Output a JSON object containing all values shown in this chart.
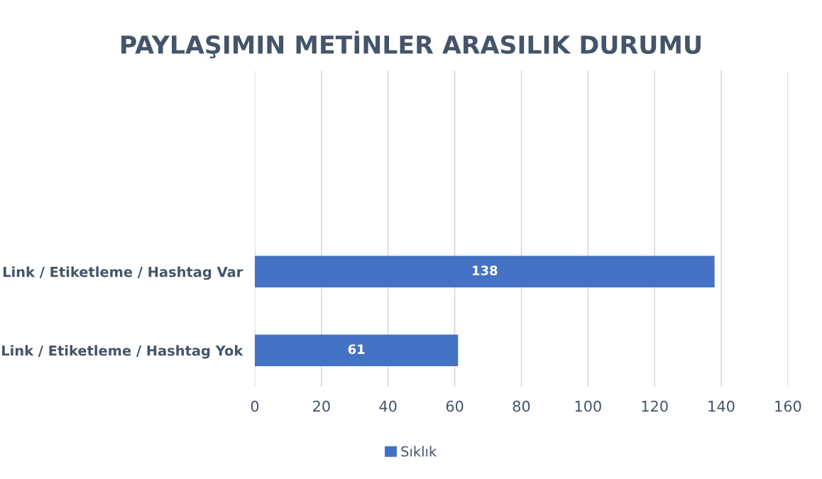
{
  "chart_data": {
    "type": "bar",
    "orientation": "horizontal",
    "title": "PAYLAŞIMIN METİNLER ARASILIK DURUMU",
    "categories": [
      "Link / Etiketleme / Hashtag Var",
      "Link / Etiketleme / Hashtag Yok"
    ],
    "series": [
      {
        "name": "Sıklık",
        "color": "#4472c4",
        "values": [
          138,
          61
        ]
      }
    ],
    "xlim": [
      0,
      160
    ],
    "xticks": [
      0,
      20,
      40,
      60,
      80,
      100,
      120,
      140,
      160
    ],
    "grid": "x",
    "legend": "bottom",
    "data_labels": true
  }
}
